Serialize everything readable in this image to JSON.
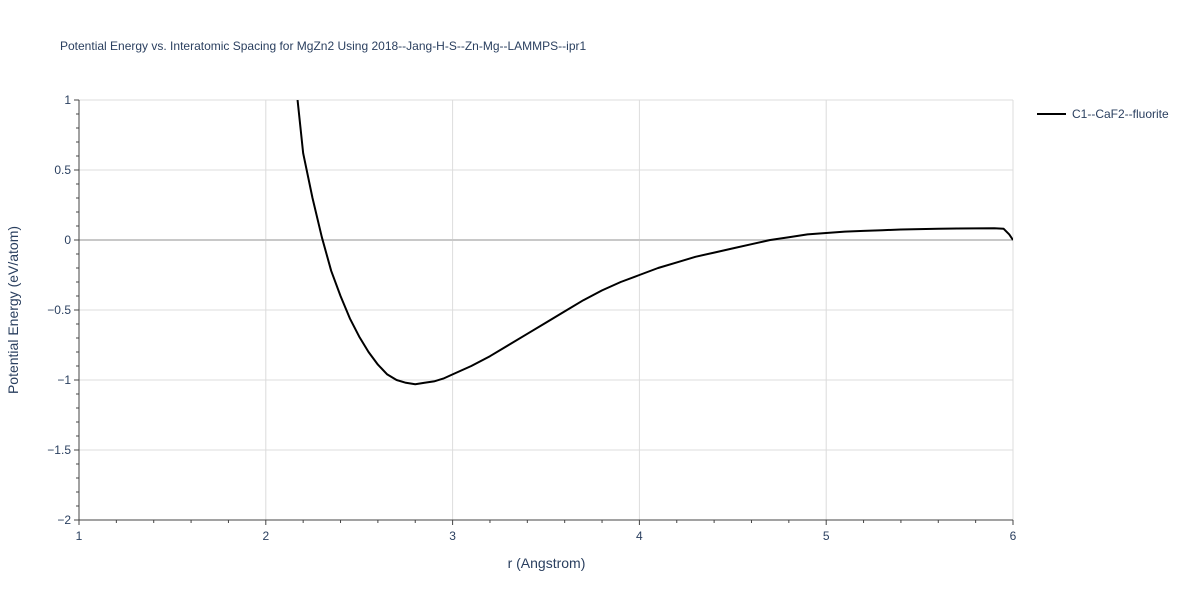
{
  "chart_data": {
    "type": "line",
    "title": "Potential Energy vs. Interatomic Spacing for MgZn2 Using 2018--Jang-H-S--Zn-Mg--LAMMPS--ipr1",
    "xlabel": "r (Angstrom)",
    "ylabel": "Potential Energy (eV/atom)",
    "xlim": [
      1,
      6
    ],
    "ylim": [
      -2,
      1
    ],
    "xticks": [
      1,
      2,
      3,
      4,
      5,
      6
    ],
    "xtick_labels": [
      "1",
      "2",
      "3",
      "4",
      "5",
      "6"
    ],
    "yticks": [
      1,
      0.5,
      0,
      -0.5,
      -1,
      -1.5,
      -2
    ],
    "ytick_labels": [
      "1",
      "0.5",
      "0",
      "−0.5",
      "−1",
      "−1.5",
      "−2"
    ],
    "grid": true,
    "legend_position": "top-right",
    "series": [
      {
        "name": "C1--CaF2--fluorite",
        "color": "#000000",
        "x": [
          2.17,
          2.2,
          2.25,
          2.3,
          2.35,
          2.4,
          2.45,
          2.5,
          2.55,
          2.6,
          2.65,
          2.7,
          2.75,
          2.8,
          2.85,
          2.9,
          2.95,
          3.0,
          3.1,
          3.2,
          3.3,
          3.4,
          3.5,
          3.6,
          3.7,
          3.8,
          3.9,
          4.0,
          4.1,
          4.2,
          4.3,
          4.4,
          4.5,
          4.6,
          4.7,
          4.8,
          4.9,
          5.0,
          5.1,
          5.2,
          5.3,
          5.4,
          5.5,
          5.6,
          5.7,
          5.8,
          5.9,
          5.95,
          5.98,
          6.0
        ],
        "y": [
          1.0,
          0.62,
          0.3,
          0.02,
          -0.22,
          -0.4,
          -0.56,
          -0.69,
          -0.8,
          -0.89,
          -0.96,
          -1.0,
          -1.02,
          -1.03,
          -1.02,
          -1.01,
          -0.99,
          -0.96,
          -0.9,
          -0.83,
          -0.75,
          -0.67,
          -0.59,
          -0.51,
          -0.43,
          -0.36,
          -0.3,
          -0.25,
          -0.2,
          -0.16,
          -0.12,
          -0.09,
          -0.06,
          -0.03,
          0.0,
          0.02,
          0.04,
          0.05,
          0.06,
          0.065,
          0.07,
          0.075,
          0.078,
          0.08,
          0.082,
          0.083,
          0.084,
          0.08,
          0.04,
          0.0
        ]
      }
    ]
  }
}
